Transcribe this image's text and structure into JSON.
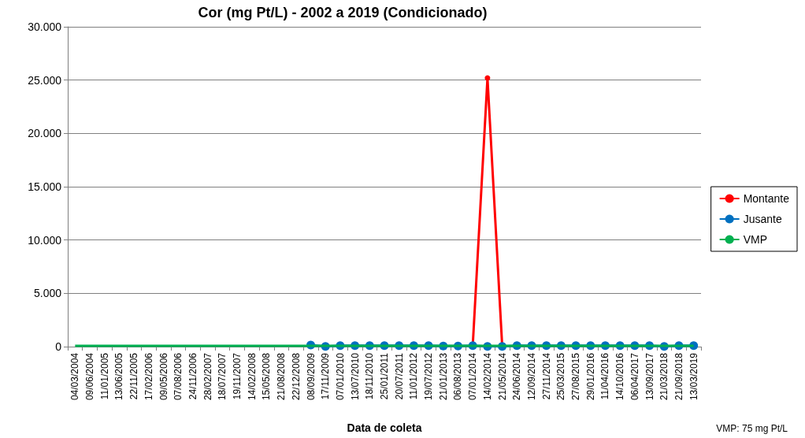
{
  "chart_data": {
    "type": "line",
    "title": "Cor (mg Pt/L) - 2002 a 2019 (Condicionado)",
    "xlabel": "Data de coleta",
    "categories": [
      "04/03/2004",
      "09/06/2004",
      "11/01/2005",
      "13/06/2005",
      "22/11/2005",
      "17/02/2006",
      "09/05/2006",
      "07/08/2006",
      "24/11/2006",
      "28/02/2007",
      "18/07/2007",
      "19/11/2007",
      "14/02/2008",
      "15/05/2008",
      "21/08/2008",
      "22/12/2008",
      "08/09/2009",
      "17/11/2009",
      "07/01/2010",
      "13/07/2010",
      "18/11/2010",
      "25/01/2011",
      "20/07/2011",
      "11/01/2012",
      "19/07/2012",
      "21/01/2013",
      "06/08/2013",
      "07/01/2014",
      "14/02/2014",
      "21/05/2014",
      "24/06/2014",
      "12/09/2014",
      "27/11/2014",
      "25/03/2015",
      "27/08/2015",
      "29/01/2016",
      "11/04/2016",
      "14/10/2016",
      "06/04/2017",
      "13/09/2017",
      "21/03/2018",
      "21/09/2018",
      "13/03/2019"
    ],
    "series": [
      {
        "name": "Montante",
        "color": "#ff0000",
        "marker": "circle",
        "values": [
          null,
          null,
          null,
          null,
          null,
          null,
          null,
          null,
          null,
          null,
          null,
          null,
          null,
          null,
          null,
          null,
          null,
          null,
          null,
          null,
          null,
          null,
          null,
          null,
          null,
          null,
          null,
          100,
          25200,
          50,
          null,
          null,
          null,
          null,
          null,
          null,
          null,
          null,
          null,
          null,
          null,
          null,
          null
        ]
      },
      {
        "name": "Jusante",
        "color": "#0070c0",
        "marker": "circle",
        "values": [
          null,
          null,
          null,
          null,
          null,
          null,
          null,
          null,
          null,
          null,
          null,
          null,
          null,
          null,
          null,
          null,
          150,
          20,
          100,
          100,
          100,
          100,
          100,
          100,
          100,
          60,
          60,
          100,
          20,
          20,
          100,
          100,
          100,
          100,
          100,
          100,
          100,
          100,
          100,
          100,
          20,
          100,
          100
        ]
      },
      {
        "name": "VMP",
        "color": "#00b050",
        "marker": "none",
        "values": [
          75,
          75,
          75,
          75,
          75,
          75,
          75,
          75,
          75,
          75,
          75,
          75,
          75,
          75,
          75,
          75,
          75,
          75,
          75,
          75,
          75,
          75,
          75,
          75,
          75,
          75,
          75,
          75,
          75,
          75,
          75,
          75,
          75,
          75,
          75,
          75,
          75,
          75,
          75,
          75,
          75,
          75,
          75
        ]
      }
    ],
    "ylim": [
      0,
      30000
    ],
    "yticks": [
      {
        "value": 0,
        "label": "0"
      },
      {
        "value": 5000,
        "label": "5.000"
      },
      {
        "value": 10000,
        "label": "10.000"
      },
      {
        "value": 15000,
        "label": "15.000"
      },
      {
        "value": 20000,
        "label": "20.000"
      },
      {
        "value": 25000,
        "label": "25.000"
      },
      {
        "value": 30000,
        "label": "30.000"
      }
    ],
    "grid": "y",
    "legend": "right",
    "annotations": [
      "VMP: 75 mg Pt/L"
    ]
  }
}
